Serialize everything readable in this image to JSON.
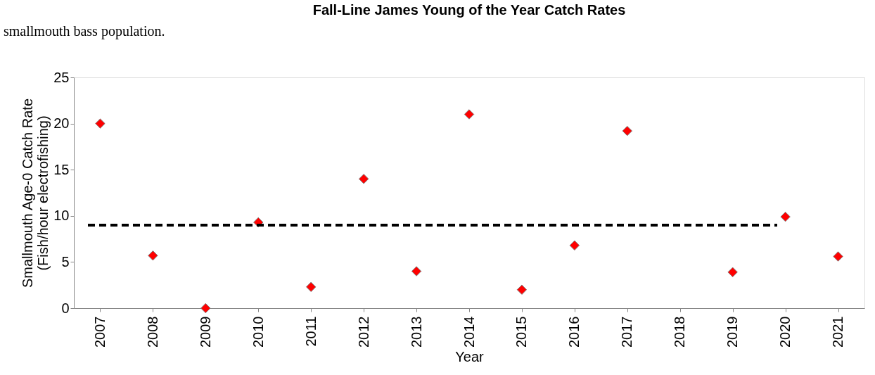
{
  "chart_data": {
    "type": "scatter",
    "title": "Fall-Line James Young of the Year Catch Rates",
    "xlabel": "Year",
    "ylabel": "Smallmouth Age-0 Catch Rate\n(Fish/hour electrofishing)",
    "categories": [
      "2007",
      "2008",
      "2009",
      "2010",
      "2011",
      "2012",
      "2013",
      "2014",
      "2015",
      "2016",
      "2017",
      "2018",
      "2019",
      "2020",
      "2021"
    ],
    "series": [
      {
        "color": "#ff0000",
        "values": [
          20,
          5.7,
          0,
          9.3,
          2.3,
          14,
          4,
          21,
          2,
          6.8,
          19.2,
          null,
          3.9,
          9.9,
          5.6
        ]
      }
    ],
    "ylim": [
      0,
      25
    ],
    "yticks": [
      0,
      5,
      10,
      15,
      20,
      25
    ],
    "ref_lines": [
      {
        "axis": "y",
        "value": 9,
        "color": "#000000",
        "line_style": "dashed"
      }
    ],
    "annotations": [
      "smallmouth bass population."
    ],
    "marker": "diamond",
    "grid": false
  }
}
